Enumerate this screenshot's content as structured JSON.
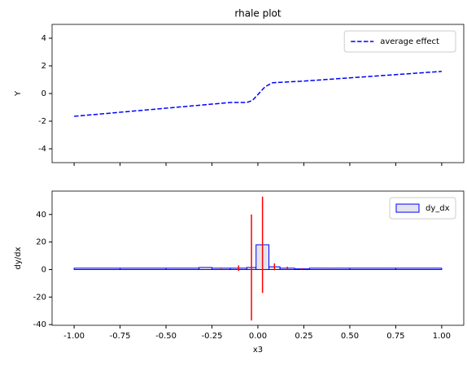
{
  "chart_data": [
    {
      "type": "line",
      "title": "rhale plot",
      "ylabel": "Y",
      "x": [
        -1,
        -0.15,
        -0.06,
        -0.03,
        0.04,
        0.08,
        0.25,
        1
      ],
      "series": [
        {
          "name": "average effect",
          "color": "#0000ff",
          "dash": true,
          "values": [
            -1.65,
            -0.65,
            -0.65,
            -0.5,
            0.5,
            0.78,
            0.9,
            1.6
          ]
        }
      ],
      "xlim": [
        -1.12,
        1.12
      ],
      "ylim": [
        -5,
        5
      ],
      "yticks": [
        -4,
        -2,
        0,
        2,
        4
      ],
      "legend": "upper right"
    },
    {
      "type": "histogram",
      "xlabel": "x3",
      "ylabel": "dy/dx",
      "bins": [
        -1,
        -0.75,
        -0.5,
        -0.32,
        -0.25,
        -0.15,
        -0.06,
        -0.01,
        0.06,
        0.12,
        0.2,
        0.28,
        0.5,
        0.75,
        1
      ],
      "series": [
        {
          "name": "dy_dx",
          "color": "#0000ff",
          "fill": "#e4e4ee",
          "error_color": "#ff0000",
          "values": [
            1,
            1,
            1,
            1.5,
            1,
            1,
            1.5,
            18,
            2,
            1,
            0.5,
            1,
            1,
            1
          ],
          "errors": [
            0,
            0,
            0,
            0.3,
            0.5,
            2,
            38.5,
            35,
            2.5,
            1,
            0.5,
            0.3,
            0,
            0
          ]
        }
      ],
      "xlim": [
        -1.12,
        1.12
      ],
      "ylim": [
        -40.5,
        57
      ],
      "yticks": [
        -40,
        -20,
        0,
        20,
        40
      ],
      "xticks": [
        {
          "value": -1,
          "label": "-1.00"
        },
        {
          "value": -0.75,
          "label": "-0.75"
        },
        {
          "value": -0.5,
          "label": "-0.50"
        },
        {
          "value": -0.25,
          "label": "-0.25"
        },
        {
          "value": 0,
          "label": "0.00"
        },
        {
          "value": 0.25,
          "label": "0.25"
        },
        {
          "value": 0.5,
          "label": "0.50"
        },
        {
          "value": 0.75,
          "label": "0.75"
        },
        {
          "value": 1,
          "label": "1.00"
        }
      ],
      "legend": "upper right"
    }
  ]
}
